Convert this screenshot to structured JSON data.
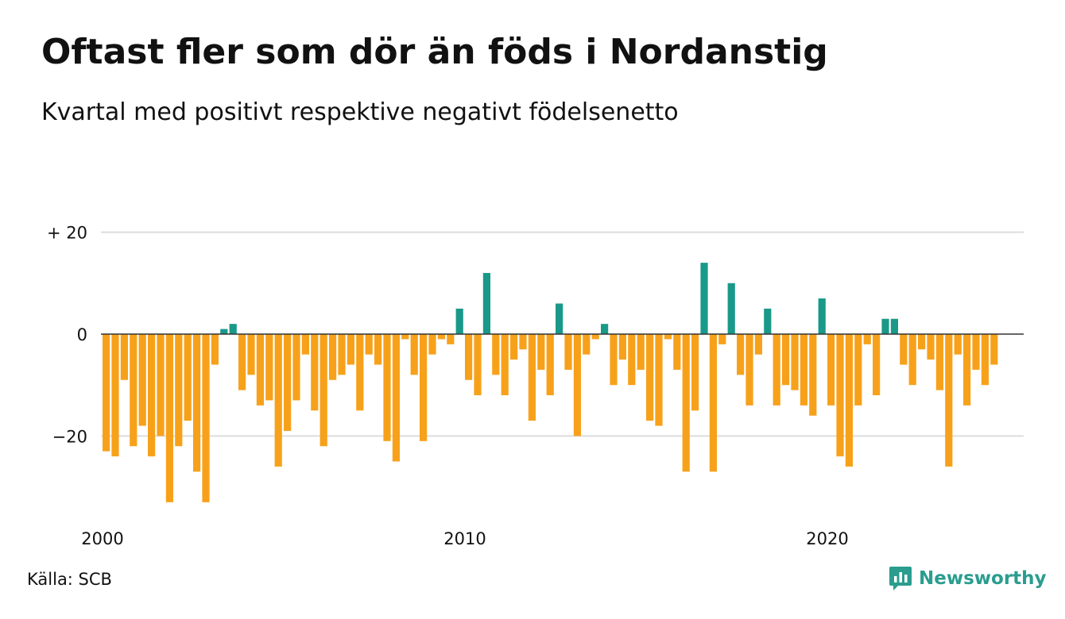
{
  "title": "Oftast fler som dör än föds i Nordanstig",
  "subtitle": "Kvartal med positivt respektive negativt födelsenetto",
  "source": "Källa: SCB",
  "brand": {
    "name": "Newsworthy",
    "icon": "newsworthy-logo-icon"
  },
  "colors": {
    "positive": "#1a9988",
    "negative": "#f7a11a",
    "grid": "#dddddd",
    "zero_line": "#333333"
  },
  "chart_data": {
    "type": "bar",
    "title": "Oftast fler som dör än föds i Nordanstig",
    "subtitle": "Kvartal med positivt respektive negativt födelsenetto",
    "x_start": 2000,
    "periods_per_year": 4,
    "xticks": [
      2000,
      2010,
      2020
    ],
    "xtick_labels": [
      "2000",
      "2010",
      "2020"
    ],
    "yticks": [
      20,
      0,
      -20
    ],
    "ytick_labels": [
      "+ 20",
      "0",
      "−20"
    ],
    "ylim": [
      -36,
      20
    ],
    "grid": true,
    "values": [
      -23,
      -24,
      -9,
      -22,
      -18,
      -24,
      -20,
      -33,
      -22,
      -17,
      -27,
      -33,
      -6,
      1,
      2,
      -11,
      -8,
      -14,
      -13,
      -26,
      -19,
      -13,
      -4,
      -15,
      -22,
      -9,
      -8,
      -6,
      -15,
      -4,
      -6,
      -21,
      -25,
      -1,
      -8,
      -21,
      -4,
      -1,
      -2,
      5,
      -9,
      -12,
      12,
      -8,
      -12,
      -5,
      -3,
      -17,
      -7,
      -12,
      6,
      -7,
      -20,
      -4,
      -1,
      2,
      -10,
      -5,
      -10,
      -7,
      -17,
      -18,
      -1,
      -7,
      -27,
      -15,
      14,
      -27,
      -2,
      10,
      -8,
      -14,
      -4,
      5,
      -14,
      -10,
      -11,
      -14,
      -16,
      7,
      -14,
      -24,
      -26,
      -14,
      -2,
      -12,
      3,
      3,
      -6,
      -10,
      -3,
      -5,
      -11,
      -26,
      -4,
      -14,
      -7,
      -10,
      -6
    ]
  }
}
